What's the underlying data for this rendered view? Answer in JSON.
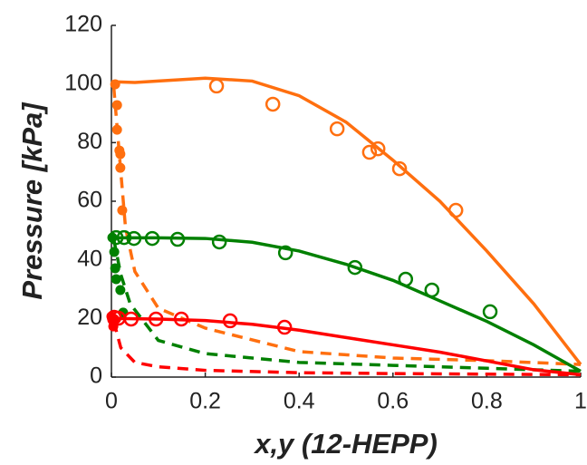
{
  "chart_data": {
    "type": "line",
    "xlabel": "x,y (12-HEPP)",
    "ylabel": "Pressure [kPa]",
    "xlim": [
      0,
      1
    ],
    "ylim": [
      0,
      120
    ],
    "xticks": [
      0,
      0.2,
      0.4,
      0.6,
      0.8,
      1
    ],
    "yticks": [
      0,
      20,
      40,
      60,
      80,
      100,
      120
    ],
    "series": [
      {
        "color": "#ff6f0f",
        "style": "solid",
        "x": [
          0,
          0.05,
          0.1,
          0.2,
          0.3,
          0.4,
          0.5,
          0.6,
          0.7,
          0.8,
          0.9,
          1
        ],
        "values": [
          100.8,
          100.5,
          101,
          102,
          101,
          96,
          87,
          74,
          60,
          43,
          25,
          4.3
        ]
      },
      {
        "color": "#ff6f0f",
        "style": "dashed",
        "x": [
          0.005,
          0.02,
          0.03,
          0.05,
          0.1,
          0.2,
          0.4,
          0.6,
          0.8,
          1
        ],
        "values": [
          99,
          70,
          51,
          36,
          23.5,
          16.7,
          8.7,
          6.5,
          5.6,
          4.3
        ]
      },
      {
        "color": "#ff6f0f",
        "style": "open",
        "x": [
          0.224,
          0.344,
          0.481,
          0.55,
          0.568,
          0.614,
          0.734
        ],
        "values": [
          99.3,
          93.1,
          84.7,
          76.7,
          77.9,
          71.1,
          56.9
        ]
      },
      {
        "color": "#ff6f0f",
        "style": "filled",
        "x": [
          0.008,
          0.012,
          0.012,
          0.017,
          0.019,
          0.019,
          0.023
        ],
        "values": [
          99.9,
          92.8,
          84.4,
          77.3,
          76.1,
          71.4,
          56.9
        ]
      },
      {
        "color": "#008000",
        "style": "solid",
        "x": [
          0,
          0.1,
          0.2,
          0.3,
          0.4,
          0.5,
          0.6,
          0.7,
          0.8,
          0.9,
          1
        ],
        "values": [
          47.5,
          47.5,
          47.3,
          46,
          43,
          38.5,
          33,
          26,
          19,
          11,
          2
        ]
      },
      {
        "color": "#008000",
        "style": "dashed",
        "x": [
          0.005,
          0.02,
          0.04,
          0.1,
          0.2,
          0.4,
          0.6,
          0.8,
          1
        ],
        "values": [
          47,
          35,
          25,
          12.5,
          8,
          5,
          4,
          3,
          2
        ]
      },
      {
        "color": "#008000",
        "style": "open",
        "x": [
          0.01,
          0.027,
          0.048,
          0.087,
          0.141,
          0.23,
          0.371,
          0.519,
          0.627,
          0.683,
          0.807
        ],
        "values": [
          47.6,
          47.6,
          47.3,
          47.3,
          47,
          46.1,
          42.4,
          37.4,
          33.4,
          29.7,
          22.3
        ]
      },
      {
        "color": "#008000",
        "style": "filled",
        "x": [
          0.002,
          0.006,
          0.008,
          0.01,
          0.019,
          0.025
        ],
        "values": [
          47.6,
          42.7,
          37.1,
          33.4,
          29.7,
          22
        ]
      },
      {
        "color": "#ff0000",
        "style": "solid",
        "x": [
          0,
          0.1,
          0.2,
          0.3,
          0.4,
          0.5,
          0.6,
          0.7,
          0.8,
          0.9,
          1
        ],
        "values": [
          20,
          19.8,
          19.3,
          18,
          16,
          13.5,
          11,
          8.5,
          5.5,
          2.5,
          0.8
        ]
      },
      {
        "color": "#ff0000",
        "style": "dashed",
        "x": [
          0.005,
          0.02,
          0.05,
          0.1,
          0.2,
          0.4,
          0.6,
          0.8,
          1
        ],
        "values": [
          19,
          10,
          5,
          3.5,
          2.3,
          1.5,
          1.2,
          1,
          0.8
        ]
      },
      {
        "color": "#ff0000",
        "style": "open",
        "x": [
          0.006,
          0.015,
          0.042,
          0.095,
          0.149,
          0.253,
          0.369
        ],
        "values": [
          20.4,
          20.1,
          19.8,
          19.8,
          19.8,
          19.2,
          17
        ]
      },
      {
        "color": "#ff0000",
        "style": "filled",
        "x": [
          0,
          0.002,
          0.004,
          0.006
        ],
        "values": [
          20.7,
          19.5,
          17.3,
          19.8
        ]
      }
    ]
  }
}
